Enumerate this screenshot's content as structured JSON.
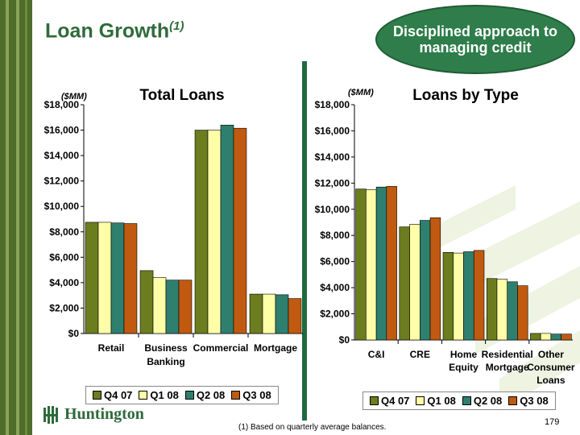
{
  "title": "Loan Growth",
  "title_sup": "(1)",
  "callout": "Disciplined approach to managing credit",
  "footnote": "(1) Based on quarterly average balances.",
  "page_number": "179",
  "logo_text": "Huntington",
  "colors": {
    "title": "#2f6b3a",
    "stripe_dark": "#4f6d2a",
    "stripe_light": "#8aa35a",
    "callout_fill": "#2e7d4a",
    "divider": "#1f6b3f"
  },
  "series_colors": [
    "#6b7d1f",
    "#ffffa8",
    "#2f7f6f",
    "#c05a10"
  ],
  "chart_data": [
    {
      "type": "bar",
      "title": "Total Loans",
      "ylabel": "($MM)",
      "ylim": [
        0,
        18000
      ],
      "yticks": [
        "$0",
        "$2,000",
        "$4,000",
        "$6,000",
        "$8,000",
        "$10,000",
        "$12,000",
        "$14,000",
        "$16,000",
        "$18,000"
      ],
      "categories": [
        "Retail",
        "Business Banking",
        "Commercial",
        "Mortgage"
      ],
      "series": [
        {
          "name": "Q4 07",
          "values": [
            8750,
            4950,
            16000,
            3100
          ]
        },
        {
          "name": "Q1 08",
          "values": [
            8750,
            4400,
            16000,
            3100
          ]
        },
        {
          "name": "Q2 08",
          "values": [
            8700,
            4200,
            16400,
            3050
          ]
        },
        {
          "name": "Q3 08",
          "values": [
            8650,
            4200,
            16150,
            2750
          ]
        }
      ],
      "legend": "bottom",
      "grid": false
    },
    {
      "type": "bar",
      "title": "Loans by Type",
      "ylabel": "($MM)",
      "ylim": [
        0,
        18000
      ],
      "yticks": [
        "$0",
        "$2,000",
        "$4,000",
        "$6,000",
        "$8,000",
        "$10,000",
        "$12,000",
        "$14,000",
        "$16,000",
        "$18,000"
      ],
      "categories": [
        "C&I",
        "CRE",
        "Home Equity",
        "Residential Mortgage",
        "Other Consumer Loans"
      ],
      "series": [
        {
          "name": "Q4 07",
          "values": [
            11550,
            8650,
            6700,
            4700,
            500
          ]
        },
        {
          "name": "Q1 08",
          "values": [
            11500,
            8850,
            6650,
            4650,
            500
          ]
        },
        {
          "name": "Q2 08",
          "values": [
            11700,
            9150,
            6750,
            4450,
            450
          ]
        },
        {
          "name": "Q3 08",
          "values": [
            11750,
            9350,
            6850,
            4150,
            450
          ]
        }
      ],
      "legend": "bottom",
      "grid": false
    }
  ]
}
